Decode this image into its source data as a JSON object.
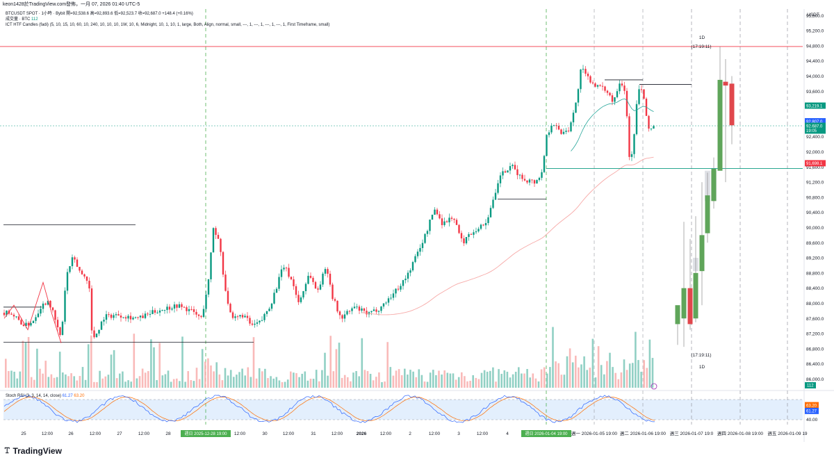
{
  "header": {
    "text": "keon1428於TradingView.com發佈，一月 07, 2026 01:40 UTC-5"
  },
  "legend": {
    "line1": "BTCUSDT SPOT · 1小時 · Bybit  開=92,538.6  高=92,893.6  低=92,523.7  收=92,687.0  +148.4 (+0.16%)",
    "line2_label": "成交量 · BTC",
    "line2_value": "112",
    "line3": "ICT HTF Candles (fadi) (5, 10, 15, 10, 60, 10, 240, 10, 10, 10, 1W, 10, 6, Midnight, 10, 1, 10, 1, large, Both, Align, normal, small, ---, 1, ---, 1, ---, 1, ---, 1, First Timeframe, small)"
  },
  "rsi": {
    "label": "Stoch RSI (3, 3, 14, 14, close)",
    "k": "61.27",
    "d": "63.20",
    "levels": [
      "80.00",
      "40.00"
    ]
  },
  "htf": {
    "label_top": "1D",
    "timer_top": "(17:19:11)",
    "label_bottom": "1D",
    "timer_bottom": "(17:19:11)"
  },
  "footer": {
    "brand": "TradingView"
  },
  "colors": {
    "up": "#089981",
    "down": "#f23645",
    "up_light": "#75c4b5",
    "down_light": "#f7a9a7",
    "htf_up": "#5fa55a",
    "htf_down": "#e0474c"
  },
  "chart_data": {
    "type": "candlestick",
    "symbol": "BTCUSDT SPOT",
    "interval": "1小時",
    "exchange": "Bybit",
    "currency_label": "USDT",
    "y_ticks": [
      95600,
      95200,
      94800,
      94400,
      94000,
      93600,
      93200,
      92800,
      92400,
      92000,
      91600,
      91200,
      90800,
      90400,
      90000,
      89600,
      89200,
      88800,
      88400,
      88000,
      87600,
      87200,
      86800,
      86400,
      86000
    ],
    "ylim": [
      85770,
      95770
    ],
    "x_ticks": [
      {
        "label": "25",
        "x": 34
      },
      {
        "label": "12:00",
        "x": 68
      },
      {
        "label": "26",
        "x": 102
      },
      {
        "label": "12:00",
        "x": 137
      },
      {
        "label": "27",
        "x": 172
      },
      {
        "label": "12:00",
        "x": 207
      },
      {
        "label": "28",
        "x": 242
      },
      {
        "label": "週日 2025-12-28 19:00",
        "x": 296,
        "box": true
      },
      {
        "label": "12:00",
        "x": 345
      },
      {
        "label": "30",
        "x": 381
      },
      {
        "label": "12:00",
        "x": 415
      },
      {
        "label": "31",
        "x": 451
      },
      {
        "label": "12:00",
        "x": 485
      },
      {
        "label": "2026",
        "x": 520,
        "bold": true
      },
      {
        "label": "12:00",
        "x": 555
      },
      {
        "label": "2",
        "x": 590
      },
      {
        "label": "12:00",
        "x": 625
      },
      {
        "label": "3",
        "x": 660
      },
      {
        "label": "12:00",
        "x": 694
      },
      {
        "label": "4",
        "x": 730
      },
      {
        "label": "週日 2026-01-04 19:00",
        "x": 786,
        "box": true
      },
      {
        "label": "週一 2026-01-05 19:00",
        "x": 855
      },
      {
        "label": "週二 2026-01-06 19:00",
        "x": 925
      },
      {
        "label": "週三 2026-01-07 19:0",
        "x": 995
      },
      {
        "label": "週四 2026-01-08 19:00",
        "x": 1065
      },
      {
        "label": "週五 2026-01-09 19",
        "x": 1133
      }
    ],
    "price_tags": [
      {
        "value": "93,219.1",
        "price": 93219.1,
        "color": "#089981"
      },
      {
        "value": "92,807.0",
        "price": 92807,
        "color": "#2962ff"
      },
      {
        "value": "92,687.0",
        "price": 92687,
        "color": "#089981"
      },
      {
        "value": "19:05",
        "price": 92560,
        "color": "#089981"
      },
      {
        "value": "91,698.1",
        "price": 91698.1,
        "color": "#f23645"
      }
    ],
    "volume_tag": "112",
    "levels": [
      {
        "price": 94780,
        "x1": 0,
        "x2": 1155,
        "color": "#f23645"
      },
      {
        "price": 91560,
        "x1": 786,
        "x2": 1155,
        "color": "#089981"
      },
      {
        "price": 90070,
        "x1": 5,
        "x2": 195,
        "color": "#131722"
      },
      {
        "price": 86970,
        "x1": 5,
        "x2": 365,
        "color": "#131722"
      },
      {
        "price": 90750,
        "x1": 716,
        "x2": 786,
        "color": "#131722"
      },
      {
        "price": 93780,
        "x1": 920,
        "x2": 995,
        "color": "#131722"
      },
      {
        "price": 93900,
        "x1": 870,
        "x2": 925,
        "color": "#131722"
      },
      {
        "price": 87900,
        "x1": 5,
        "x2": 60,
        "color": "#131722"
      }
    ],
    "series": [
      {
        "name": "1H",
        "anchors": [
          [
            0,
            87700
          ],
          [
            12,
            87800
          ],
          [
            24,
            87600
          ],
          [
            36,
            87400
          ],
          [
            48,
            87550
          ],
          [
            58,
            87900
          ],
          [
            70,
            88100
          ],
          [
            82,
            87400
          ],
          [
            88,
            87050
          ],
          [
            95,
            88700
          ],
          [
            105,
            89200
          ],
          [
            116,
            88800
          ],
          [
            128,
            88600
          ],
          [
            131,
            87300
          ],
          [
            136,
            87100
          ],
          [
            150,
            87650
          ],
          [
            170,
            87700
          ],
          [
            200,
            87600
          ],
          [
            225,
            87800
          ],
          [
            255,
            87950
          ],
          [
            275,
            87800
          ],
          [
            290,
            87600
          ],
          [
            300,
            88600
          ],
          [
            307,
            90000
          ],
          [
            316,
            89600
          ],
          [
            323,
            88500
          ],
          [
            333,
            87550
          ],
          [
            350,
            87700
          ],
          [
            362,
            87400
          ],
          [
            375,
            87500
          ],
          [
            390,
            88000
          ],
          [
            408,
            89000
          ],
          [
            420,
            88600
          ],
          [
            430,
            88000
          ],
          [
            445,
            88800
          ],
          [
            456,
            88300
          ],
          [
            470,
            89000
          ],
          [
            478,
            88200
          ],
          [
            490,
            87600
          ],
          [
            510,
            87900
          ],
          [
            530,
            87700
          ],
          [
            548,
            87900
          ],
          [
            568,
            88300
          ],
          [
            585,
            88700
          ],
          [
            600,
            89300
          ],
          [
            612,
            89800
          ],
          [
            625,
            90500
          ],
          [
            637,
            90100
          ],
          [
            652,
            90300
          ],
          [
            665,
            89600
          ],
          [
            680,
            89900
          ],
          [
            698,
            90100
          ],
          [
            712,
            90800
          ],
          [
            720,
            91400
          ],
          [
            738,
            91600
          ],
          [
            750,
            91300
          ],
          [
            770,
            91200
          ],
          [
            780,
            91450
          ],
          [
            786,
            92400
          ],
          [
            795,
            92800
          ],
          [
            806,
            92500
          ],
          [
            818,
            92600
          ],
          [
            828,
            93200
          ],
          [
            836,
            94200
          ],
          [
            848,
            93900
          ],
          [
            862,
            93700
          ],
          [
            875,
            93600
          ],
          [
            882,
            93300
          ],
          [
            892,
            93900
          ],
          [
            900,
            93600
          ],
          [
            906,
            91700
          ],
          [
            912,
            92300
          ],
          [
            918,
            93700
          ],
          [
            925,
            93600
          ],
          [
            932,
            92600
          ],
          [
            943,
            92700
          ]
        ]
      },
      {
        "name": "HTF 1D",
        "candles": [
          {
            "x": 975,
            "o": 87450,
            "h": 87900,
            "l": 86900,
            "c": 87950
          },
          {
            "x": 984,
            "o": 87600,
            "h": 90150,
            "l": 86850,
            "c": 88400
          },
          {
            "x": 993,
            "o": 88400,
            "h": 89700,
            "l": 87300,
            "c": 87450
          },
          {
            "x": 1001,
            "o": 87600,
            "h": 90300,
            "l": 87500,
            "c": 88800
          },
          {
            "x": 1010,
            "o": 88850,
            "h": 91200,
            "l": 87950,
            "c": 89800
          },
          {
            "x": 1018,
            "o": 89850,
            "h": 91450,
            "l": 89600,
            "c": 90850
          },
          {
            "x": 1027,
            "o": 90700,
            "h": 91850,
            "l": 90500,
            "c": 91550
          },
          {
            "x": 1036,
            "o": 91500,
            "h": 94780,
            "l": 91550,
            "c": 93900
          },
          {
            "x": 1044,
            "o": 93850,
            "h": 94450,
            "l": 91200,
            "c": 93750
          },
          {
            "x": 1053,
            "o": 93800,
            "h": 94000,
            "l": 92200,
            "c": 92700
          }
        ]
      }
    ],
    "htf_ghost": [
      {
        "x": 1001,
        "top": 89200,
        "bottom": 88850
      },
      {
        "x": 1018,
        "top": 91500,
        "bottom": 90700
      },
      {
        "x": 1027,
        "top": 91500,
        "bottom": 90700
      }
    ],
    "htf_separators": [
      995,
      1065,
      1133
    ],
    "day_separators_green": [
      296,
      786
    ],
    "day_separators_gray": [
      855,
      925
    ],
    "stoch_rsi": {
      "k": 61.27,
      "d": 63.2,
      "upper": 80,
      "lower": 40
    }
  }
}
